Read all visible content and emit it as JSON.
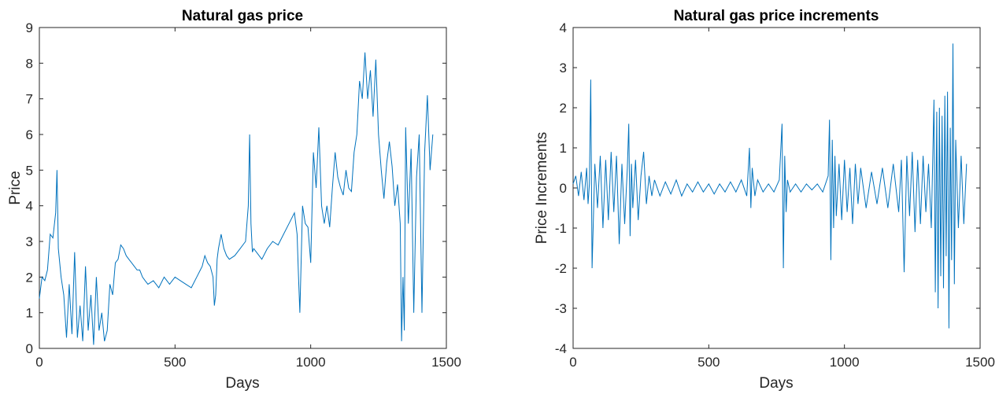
{
  "chart_data": [
    {
      "type": "line",
      "title": "Natural gas price",
      "xlabel": "Days",
      "ylabel": "Price",
      "xlim": [
        0,
        1500
      ],
      "ylim": [
        0,
        9
      ],
      "xticks": [
        "0",
        "500",
        "1000",
        "1500"
      ],
      "yticks": [
        "0",
        "1",
        "2",
        "3",
        "4",
        "5",
        "6",
        "7",
        "8",
        "9"
      ],
      "grid": false,
      "line_color": "#0072BD",
      "series": [
        {
          "x": [
            0,
            10,
            20,
            30,
            40,
            50,
            60,
            65,
            70,
            80,
            90,
            100,
            110,
            120,
            130,
            140,
            150,
            160,
            170,
            180,
            190,
            200,
            210,
            220,
            230,
            240,
            250,
            260,
            270,
            280,
            290,
            300,
            310,
            320,
            330,
            340,
            350,
            360,
            370,
            380,
            390,
            400,
            420,
            440,
            460,
            480,
            500,
            520,
            540,
            560,
            580,
            600,
            610,
            620,
            630,
            640,
            645,
            650,
            655,
            660,
            670,
            680,
            690,
            700,
            720,
            740,
            760,
            770,
            775,
            780,
            785,
            790,
            800,
            820,
            840,
            860,
            880,
            900,
            920,
            940,
            950,
            955,
            960,
            965,
            970,
            980,
            990,
            1000,
            1010,
            1020,
            1030,
            1040,
            1050,
            1060,
            1070,
            1080,
            1090,
            1100,
            1110,
            1120,
            1130,
            1140,
            1150,
            1160,
            1170,
            1180,
            1190,
            1200,
            1210,
            1220,
            1230,
            1240,
            1250,
            1260,
            1270,
            1280,
            1290,
            1300,
            1310,
            1320,
            1330,
            1335,
            1340,
            1345,
            1350,
            1360,
            1370,
            1380,
            1390,
            1400,
            1410,
            1420,
            1430,
            1440,
            1450
          ],
          "y": [
            1.4,
            2.0,
            1.9,
            2.2,
            3.2,
            3.1,
            3.8,
            5.0,
            2.8,
            2.0,
            1.5,
            0.3,
            1.8,
            0.4,
            2.7,
            0.3,
            1.2,
            0.2,
            2.3,
            0.5,
            1.5,
            0.1,
            2.0,
            0.5,
            1.0,
            0.2,
            0.5,
            1.8,
            1.5,
            2.4,
            2.5,
            2.9,
            2.8,
            2.6,
            2.5,
            2.4,
            2.3,
            2.2,
            2.2,
            2.0,
            1.9,
            1.8,
            1.9,
            1.7,
            2.0,
            1.8,
            2.0,
            1.9,
            1.8,
            1.7,
            2.0,
            2.3,
            2.6,
            2.4,
            2.3,
            2.0,
            1.2,
            1.5,
            2.5,
            2.8,
            3.2,
            2.8,
            2.6,
            2.5,
            2.6,
            2.8,
            3.0,
            4.0,
            6.0,
            3.5,
            2.7,
            2.8,
            2.7,
            2.5,
            2.8,
            3.0,
            2.9,
            3.2,
            3.5,
            3.8,
            3.2,
            2.0,
            1.0,
            2.5,
            4.0,
            3.5,
            3.4,
            2.4,
            5.5,
            4.5,
            6.2,
            4.0,
            3.5,
            4.0,
            3.4,
            4.5,
            5.5,
            4.8,
            4.5,
            4.3,
            5.0,
            4.5,
            4.4,
            5.5,
            6.0,
            7.5,
            7.0,
            8.3,
            7.0,
            7.8,
            6.5,
            8.1,
            6.0,
            5.0,
            4.2,
            5.2,
            5.8,
            5.1,
            4.0,
            4.6,
            3.5,
            0.2,
            2.0,
            0.5,
            6.2,
            3.5,
            5.6,
            1.0,
            4.8,
            6.0,
            1.0,
            5.5,
            7.1,
            5.0,
            6.0
          ]
        }
      ]
    },
    {
      "type": "line",
      "title": "Natural gas price increments",
      "xlabel": "Days",
      "ylabel": "Price Increments",
      "xlim": [
        0,
        1500
      ],
      "ylim": [
        -4,
        4
      ],
      "xticks": [
        "0",
        "500",
        "1000",
        "1500"
      ],
      "yticks": [
        "-4",
        "-3",
        "-2",
        "-1",
        "0",
        "1",
        "2",
        "3",
        "4"
      ],
      "grid": false,
      "line_color": "#0072BD",
      "series": [
        {
          "x": [
            0,
            10,
            20,
            30,
            40,
            50,
            55,
            60,
            65,
            70,
            80,
            90,
            100,
            110,
            120,
            130,
            140,
            150,
            160,
            170,
            180,
            190,
            200,
            205,
            210,
            215,
            220,
            230,
            240,
            250,
            260,
            270,
            280,
            290,
            300,
            320,
            340,
            360,
            380,
            400,
            420,
            440,
            460,
            480,
            500,
            520,
            540,
            560,
            580,
            600,
            620,
            640,
            650,
            655,
            660,
            670,
            680,
            700,
            720,
            740,
            760,
            770,
            775,
            780,
            785,
            790,
            800,
            820,
            840,
            860,
            880,
            900,
            920,
            940,
            945,
            950,
            955,
            960,
            965,
            970,
            980,
            990,
            1000,
            1010,
            1020,
            1030,
            1040,
            1050,
            1060,
            1080,
            1100,
            1120,
            1140,
            1160,
            1180,
            1200,
            1210,
            1220,
            1230,
            1240,
            1250,
            1260,
            1270,
            1280,
            1290,
            1300,
            1310,
            1320,
            1330,
            1335,
            1340,
            1345,
            1350,
            1355,
            1360,
            1365,
            1370,
            1375,
            1380,
            1385,
            1390,
            1395,
            1400,
            1405,
            1410,
            1420,
            1430,
            1440,
            1450
          ],
          "y": [
            0.1,
            0.3,
            -0.2,
            0.4,
            -0.3,
            0.5,
            -0.4,
            0.1,
            2.7,
            -2.0,
            0.6,
            -0.5,
            0.8,
            -1.0,
            0.7,
            -0.8,
            0.9,
            -0.6,
            0.8,
            -1.4,
            0.6,
            -0.9,
            0.5,
            1.6,
            -1.2,
            0.6,
            -0.5,
            0.7,
            -0.8,
            0.3,
            0.9,
            -0.4,
            0.3,
            -0.2,
            0.2,
            -0.2,
            0.15,
            -0.15,
            0.2,
            -0.2,
            0.1,
            -0.1,
            0.15,
            -0.1,
            0.1,
            -0.15,
            0.1,
            -0.1,
            0.15,
            -0.1,
            0.2,
            -0.2,
            1.0,
            -0.5,
            0.5,
            -0.2,
            0.2,
            -0.1,
            0.1,
            -0.1,
            0.2,
            1.6,
            -2.0,
            0.8,
            -0.6,
            0.2,
            -0.1,
            0.1,
            -0.1,
            0.1,
            -0.05,
            0.1,
            -0.1,
            0.3,
            1.7,
            -1.8,
            1.2,
            -1.0,
            0.8,
            -0.7,
            0.6,
            -0.8,
            0.7,
            -0.6,
            0.5,
            -0.9,
            0.6,
            -0.4,
            0.5,
            -0.5,
            0.4,
            -0.4,
            0.5,
            -0.5,
            0.6,
            -0.6,
            0.7,
            -2.1,
            0.8,
            -0.7,
            0.9,
            -1.1,
            0.7,
            -0.9,
            0.8,
            -0.6,
            0.6,
            -1.0,
            2.2,
            -2.6,
            1.9,
            -3.0,
            2.0,
            -2.2,
            1.8,
            -2.5,
            2.3,
            -1.7,
            2.4,
            -3.5,
            1.5,
            -1.8,
            3.6,
            -2.4,
            1.2,
            -1.0,
            0.8,
            -0.9,
            0.6
          ]
        }
      ]
    }
  ]
}
